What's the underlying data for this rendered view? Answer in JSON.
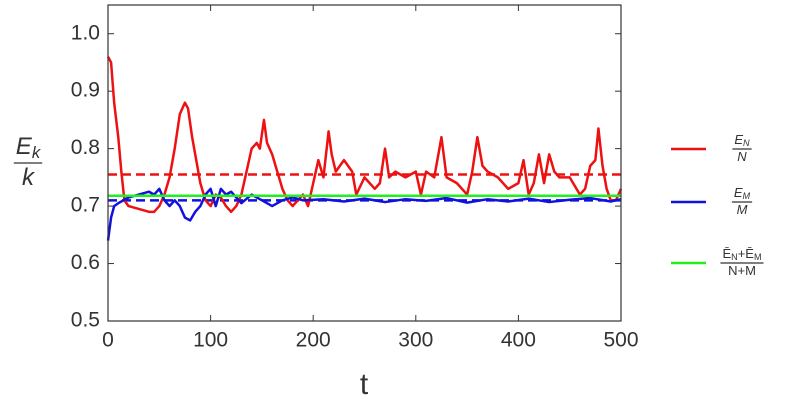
{
  "chart_data": {
    "type": "line",
    "y_label": {
      "numerator": [
        {
          "text": "E"
        },
        {
          "text": "k",
          "sub": true
        }
      ],
      "denominator": "k"
    },
    "x_label": "t",
    "xlim": [
      0,
      500
    ],
    "xticks": [
      0,
      100,
      200,
      300,
      400,
      500
    ],
    "ylim": [
      0.5,
      1.05
    ],
    "yticks": [
      {
        "value": 0.5,
        "label": "0.5"
      },
      {
        "value": 0.6,
        "label": "0.6"
      },
      {
        "value": 0.7,
        "label": "0.7"
      },
      {
        "value": 0.8,
        "label": "0.8"
      },
      {
        "value": 0.9,
        "label": "0.9"
      },
      {
        "value": 1.0,
        "label": "1.0"
      }
    ],
    "series": [
      {
        "name": {
          "numerator": [
            {
              "text": "E"
            },
            {
              "text": "N",
              "sub": true
            }
          ],
          "denominator": "N"
        },
        "color": "#ee1111",
        "x": [
          0,
          3,
          6,
          10,
          13,
          16,
          20,
          30,
          40,
          45,
          50,
          55,
          60,
          65,
          70,
          75,
          78,
          82,
          86,
          90,
          95,
          100,
          105,
          110,
          115,
          120,
          125,
          130,
          135,
          140,
          145,
          148,
          152,
          155,
          160,
          165,
          170,
          175,
          180,
          185,
          190,
          195,
          200,
          205,
          210,
          215,
          218,
          222,
          230,
          238,
          242,
          250,
          260,
          265,
          270,
          274,
          280,
          290,
          300,
          305,
          310,
          318,
          325,
          330,
          340,
          350,
          355,
          360,
          365,
          370,
          380,
          390,
          400,
          405,
          410,
          415,
          420,
          425,
          430,
          435,
          440,
          450,
          460,
          465,
          470,
          475,
          478,
          482,
          486,
          490,
          495,
          500
        ],
        "values": [
          0.96,
          0.95,
          0.88,
          0.82,
          0.76,
          0.71,
          0.7,
          0.695,
          0.69,
          0.69,
          0.7,
          0.72,
          0.75,
          0.8,
          0.86,
          0.88,
          0.87,
          0.82,
          0.78,
          0.74,
          0.71,
          0.7,
          0.72,
          0.715,
          0.7,
          0.69,
          0.7,
          0.72,
          0.76,
          0.8,
          0.81,
          0.8,
          0.85,
          0.81,
          0.79,
          0.76,
          0.73,
          0.71,
          0.7,
          0.71,
          0.72,
          0.7,
          0.74,
          0.78,
          0.75,
          0.83,
          0.79,
          0.76,
          0.78,
          0.76,
          0.72,
          0.75,
          0.73,
          0.74,
          0.8,
          0.75,
          0.76,
          0.75,
          0.76,
          0.72,
          0.76,
          0.75,
          0.82,
          0.75,
          0.74,
          0.72,
          0.76,
          0.82,
          0.77,
          0.76,
          0.75,
          0.73,
          0.74,
          0.78,
          0.72,
          0.74,
          0.79,
          0.74,
          0.79,
          0.76,
          0.75,
          0.75,
          0.72,
          0.73,
          0.77,
          0.78,
          0.835,
          0.77,
          0.73,
          0.71,
          0.71,
          0.73
        ]
      },
      {
        "name": {
          "numerator": [
            {
              "text": "E"
            },
            {
              "text": "M",
              "sub": true
            }
          ],
          "denominator": "M"
        },
        "color": "#1111dd",
        "x": [
          0,
          3,
          6,
          10,
          20,
          30,
          40,
          45,
          50,
          55,
          60,
          65,
          70,
          75,
          80,
          85,
          90,
          95,
          100,
          105,
          110,
          115,
          120,
          130,
          140,
          150,
          160,
          170,
          180,
          190,
          210,
          230,
          250,
          270,
          290,
          310,
          330,
          350,
          370,
          390,
          410,
          430,
          450,
          470,
          490,
          500
        ],
        "values": [
          0.64,
          0.68,
          0.7,
          0.705,
          0.715,
          0.72,
          0.725,
          0.72,
          0.73,
          0.71,
          0.7,
          0.71,
          0.7,
          0.68,
          0.675,
          0.69,
          0.7,
          0.72,
          0.73,
          0.7,
          0.73,
          0.72,
          0.725,
          0.705,
          0.72,
          0.71,
          0.7,
          0.71,
          0.715,
          0.71,
          0.712,
          0.708,
          0.713,
          0.707,
          0.712,
          0.709,
          0.714,
          0.706,
          0.712,
          0.708,
          0.713,
          0.707,
          0.711,
          0.714,
          0.708,
          0.712
        ]
      },
      {
        "name": {
          "numerator": [
            {
              "text": "Ē"
            },
            {
              "text": "N",
              "sub": true
            },
            {
              "text": "+Ē"
            },
            {
              "text": "M",
              "sub": true
            }
          ],
          "denominator": "N+M"
        },
        "color": "#22ee22",
        "x": [
          0,
          500
        ],
        "values": [
          0.718,
          0.718
        ]
      }
    ],
    "reference_lines": [
      {
        "value": 0.755,
        "color": "#ee1111"
      },
      {
        "value": 0.71,
        "color": "#1111dd"
      }
    ]
  }
}
